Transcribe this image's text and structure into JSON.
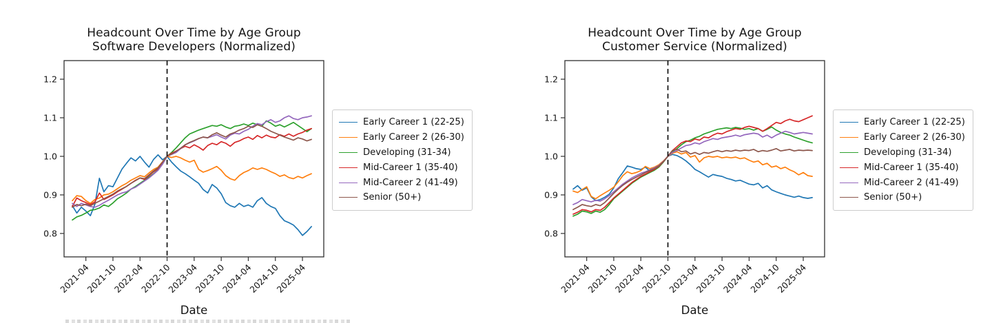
{
  "page": {
    "background": "#ffffff",
    "text_color": "#151515"
  },
  "chart_data": [
    {
      "type": "line",
      "title": "Headcount Over Time by Age Group",
      "subtitle": "Software Developers (Normalized)",
      "xlabel": "Date",
      "ylabel": "",
      "ylim": [
        0.74,
        1.25
      ],
      "yticks": [
        0.8,
        0.9,
        1.0,
        1.1,
        1.2
      ],
      "xticks": [
        "2021-04",
        "2021-10",
        "2022-04",
        "2022-10",
        "2023-04",
        "2023-10",
        "2024-04",
        "2024-10",
        "2025-04"
      ],
      "grid": false,
      "legend_position": "right",
      "vline": {
        "x": "2022-10",
        "style": "dashed",
        "color": "#000000"
      },
      "x": [
        "2021-01",
        "2021-02",
        "2021-03",
        "2021-04",
        "2021-05",
        "2021-06",
        "2021-07",
        "2021-08",
        "2021-09",
        "2021-10",
        "2021-11",
        "2021-12",
        "2022-01",
        "2022-02",
        "2022-03",
        "2022-04",
        "2022-05",
        "2022-06",
        "2022-07",
        "2022-08",
        "2022-09",
        "2022-10",
        "2022-11",
        "2022-12",
        "2023-01",
        "2023-02",
        "2023-03",
        "2023-04",
        "2023-05",
        "2023-06",
        "2023-07",
        "2023-08",
        "2023-09",
        "2023-10",
        "2023-11",
        "2023-12",
        "2024-01",
        "2024-02",
        "2024-03",
        "2024-04",
        "2024-05",
        "2024-06",
        "2024-07",
        "2024-08",
        "2024-09",
        "2024-10",
        "2024-11",
        "2024-12",
        "2025-01",
        "2025-02",
        "2025-03",
        "2025-04",
        "2025-05",
        "2025-06"
      ],
      "series": [
        {
          "name": "Early Career 1 (22-25)",
          "color": "#1f77b4",
          "values": [
            0.872,
            0.853,
            0.868,
            0.858,
            0.846,
            0.876,
            0.943,
            0.908,
            0.924,
            0.921,
            0.944,
            0.967,
            0.982,
            0.996,
            0.988,
            1.0,
            0.985,
            0.972,
            0.992,
            1.004,
            0.991,
            1.0,
            0.985,
            0.973,
            0.962,
            0.955,
            0.947,
            0.938,
            0.93,
            0.914,
            0.905,
            0.927,
            0.918,
            0.903,
            0.88,
            0.872,
            0.868,
            0.878,
            0.87,
            0.874,
            0.868,
            0.885,
            0.893,
            0.878,
            0.87,
            0.865,
            0.846,
            0.833,
            0.828,
            0.822,
            0.81,
            0.795,
            0.805,
            0.818
          ]
        },
        {
          "name": "Early Career 2 (26-30)",
          "color": "#ff7f0e",
          "values": [
            0.885,
            0.898,
            0.896,
            0.885,
            0.878,
            0.888,
            0.892,
            0.9,
            0.902,
            0.908,
            0.916,
            0.924,
            0.93,
            0.938,
            0.944,
            0.95,
            0.947,
            0.957,
            0.966,
            0.972,
            0.986,
            1.0,
            0.997,
            1.0,
            0.996,
            0.99,
            0.985,
            0.99,
            0.966,
            0.959,
            0.963,
            0.968,
            0.974,
            0.964,
            0.95,
            0.942,
            0.938,
            0.95,
            0.958,
            0.963,
            0.97,
            0.966,
            0.97,
            0.966,
            0.96,
            0.955,
            0.948,
            0.952,
            0.945,
            0.942,
            0.948,
            0.944,
            0.95,
            0.955
          ]
        },
        {
          "name": "Developing (31-34)",
          "color": "#2ca02c",
          "values": [
            0.835,
            0.843,
            0.847,
            0.853,
            0.86,
            0.862,
            0.866,
            0.874,
            0.87,
            0.879,
            0.89,
            0.897,
            0.905,
            0.915,
            0.922,
            0.93,
            0.938,
            0.946,
            0.955,
            0.965,
            0.98,
            1.0,
            1.01,
            1.022,
            1.035,
            1.048,
            1.058,
            1.063,
            1.068,
            1.072,
            1.076,
            1.08,
            1.078,
            1.082,
            1.076,
            1.072,
            1.078,
            1.08,
            1.084,
            1.08,
            1.086,
            1.082,
            1.078,
            1.092,
            1.086,
            1.078,
            1.082,
            1.076,
            1.082,
            1.088,
            1.08,
            1.072,
            1.064,
            1.072
          ]
        },
        {
          "name": "Mid-Career 1 (35-40)",
          "color": "#d62728",
          "values": [
            0.87,
            0.892,
            0.885,
            0.88,
            0.875,
            0.882,
            0.905,
            0.888,
            0.894,
            0.9,
            0.908,
            0.915,
            0.922,
            0.93,
            0.938,
            0.944,
            0.94,
            0.95,
            0.96,
            0.968,
            0.984,
            1.0,
            1.008,
            1.014,
            1.02,
            1.026,
            1.022,
            1.03,
            1.024,
            1.016,
            1.028,
            1.034,
            1.03,
            1.038,
            1.034,
            1.026,
            1.036,
            1.04,
            1.046,
            1.05,
            1.044,
            1.054,
            1.048,
            1.055,
            1.05,
            1.048,
            1.056,
            1.052,
            1.058,
            1.052,
            1.058,
            1.062,
            1.068,
            1.072
          ]
        },
        {
          "name": "Mid-Career 2 (41-49)",
          "color": "#9467bd",
          "values": [
            0.878,
            0.87,
            0.878,
            0.874,
            0.87,
            0.868,
            0.873,
            0.88,
            0.886,
            0.893,
            0.9,
            0.905,
            0.908,
            0.915,
            0.92,
            0.928,
            0.936,
            0.944,
            0.954,
            0.964,
            0.98,
            1.0,
            1.005,
            1.01,
            1.02,
            1.03,
            1.035,
            1.04,
            1.046,
            1.05,
            1.048,
            1.052,
            1.056,
            1.05,
            1.045,
            1.055,
            1.06,
            1.058,
            1.065,
            1.07,
            1.078,
            1.085,
            1.082,
            1.09,
            1.095,
            1.088,
            1.092,
            1.1,
            1.105,
            1.098,
            1.095,
            1.1,
            1.102,
            1.105
          ]
        },
        {
          "name": "Senior (50+)",
          "color": "#8c564b",
          "values": [
            0.868,
            0.875,
            0.872,
            0.876,
            0.872,
            0.878,
            0.884,
            0.89,
            0.896,
            0.902,
            0.91,
            0.916,
            0.922,
            0.93,
            0.937,
            0.944,
            0.942,
            0.952,
            0.962,
            0.97,
            0.985,
            1.0,
            1.006,
            1.013,
            1.021,
            1.03,
            1.036,
            1.041,
            1.046,
            1.05,
            1.048,
            1.056,
            1.061,
            1.055,
            1.05,
            1.058,
            1.062,
            1.068,
            1.072,
            1.078,
            1.075,
            1.082,
            1.078,
            1.072,
            1.065,
            1.06,
            1.055,
            1.05,
            1.046,
            1.042,
            1.048,
            1.045,
            1.04,
            1.044
          ]
        }
      ]
    },
    {
      "type": "line",
      "title": "Headcount Over Time by Age Group",
      "subtitle": "Customer Service (Normalized)",
      "xlabel": "Date",
      "ylabel": "",
      "ylim": [
        0.74,
        1.25
      ],
      "yticks": [
        0.8,
        0.9,
        1.0,
        1.1,
        1.2
      ],
      "xticks": [
        "2021-04",
        "2021-10",
        "2022-04",
        "2022-10",
        "2023-04",
        "2023-10",
        "2024-04",
        "2024-10",
        "2025-04"
      ],
      "grid": false,
      "legend_position": "right",
      "vline": {
        "x": "2022-10",
        "style": "dashed",
        "color": "#000000"
      },
      "x": [
        "2021-01",
        "2021-02",
        "2021-03",
        "2021-04",
        "2021-05",
        "2021-06",
        "2021-07",
        "2021-08",
        "2021-09",
        "2021-10",
        "2021-11",
        "2021-12",
        "2022-01",
        "2022-02",
        "2022-03",
        "2022-04",
        "2022-05",
        "2022-06",
        "2022-07",
        "2022-08",
        "2022-09",
        "2022-10",
        "2022-11",
        "2022-12",
        "2023-01",
        "2023-02",
        "2023-03",
        "2023-04",
        "2023-05",
        "2023-06",
        "2023-07",
        "2023-08",
        "2023-09",
        "2023-10",
        "2023-11",
        "2023-12",
        "2024-01",
        "2024-02",
        "2024-03",
        "2024-04",
        "2024-05",
        "2024-06",
        "2024-07",
        "2024-08",
        "2024-09",
        "2024-10",
        "2024-11",
        "2024-12",
        "2025-01",
        "2025-02",
        "2025-03",
        "2025-04",
        "2025-05",
        "2025-06"
      ],
      "series": [
        {
          "name": "Early Career 1 (22-25)",
          "color": "#1f77b4",
          "values": [
            0.915,
            0.924,
            0.912,
            0.918,
            0.895,
            0.885,
            0.888,
            0.894,
            0.902,
            0.918,
            0.942,
            0.958,
            0.975,
            0.972,
            0.968,
            0.966,
            0.972,
            0.962,
            0.968,
            0.975,
            0.986,
            1.0,
            1.005,
            1.002,
            0.996,
            0.988,
            0.978,
            0.966,
            0.96,
            0.953,
            0.946,
            0.953,
            0.95,
            0.948,
            0.943,
            0.94,
            0.936,
            0.938,
            0.933,
            0.928,
            0.926,
            0.93,
            0.918,
            0.924,
            0.913,
            0.908,
            0.904,
            0.9,
            0.897,
            0.894,
            0.897,
            0.893,
            0.891,
            0.893
          ]
        },
        {
          "name": "Early Career 2 (26-30)",
          "color": "#ff7f0e",
          "values": [
            0.91,
            0.906,
            0.914,
            0.921,
            0.896,
            0.89,
            0.898,
            0.905,
            0.912,
            0.92,
            0.934,
            0.95,
            0.96,
            0.955,
            0.958,
            0.963,
            0.974,
            0.968,
            0.972,
            0.978,
            0.988,
            1.0,
            1.008,
            1.012,
            1.006,
            1.01,
            0.998,
            1.002,
            0.985,
            0.996,
            1.0,
            0.998,
            1.0,
            0.996,
            0.998,
            0.996,
            0.998,
            0.994,
            0.996,
            0.99,
            0.985,
            0.988,
            0.978,
            0.982,
            0.972,
            0.975,
            0.968,
            0.972,
            0.965,
            0.96,
            0.952,
            0.958,
            0.95,
            0.948
          ]
        },
        {
          "name": "Developing (31-34)",
          "color": "#2ca02c",
          "values": [
            0.845,
            0.85,
            0.858,
            0.856,
            0.852,
            0.858,
            0.855,
            0.862,
            0.875,
            0.89,
            0.9,
            0.91,
            0.92,
            0.93,
            0.938,
            0.946,
            0.952,
            0.958,
            0.964,
            0.972,
            0.985,
            1.0,
            1.012,
            1.02,
            1.03,
            1.038,
            1.042,
            1.048,
            1.052,
            1.058,
            1.062,
            1.066,
            1.07,
            1.072,
            1.074,
            1.072,
            1.075,
            1.073,
            1.07,
            1.072,
            1.068,
            1.072,
            1.065,
            1.07,
            1.076,
            1.068,
            1.062,
            1.058,
            1.055,
            1.05,
            1.046,
            1.042,
            1.038,
            1.035
          ]
        },
        {
          "name": "Mid-Career 1 (35-40)",
          "color": "#d62728",
          "values": [
            0.85,
            0.855,
            0.862,
            0.86,
            0.856,
            0.862,
            0.86,
            0.868,
            0.88,
            0.892,
            0.902,
            0.912,
            0.922,
            0.932,
            0.94,
            0.948,
            0.954,
            0.96,
            0.966,
            0.974,
            0.986,
            1.0,
            1.015,
            1.025,
            1.035,
            1.04,
            1.038,
            1.045,
            1.042,
            1.05,
            1.048,
            1.055,
            1.06,
            1.058,
            1.064,
            1.068,
            1.072,
            1.07,
            1.075,
            1.078,
            1.075,
            1.072,
            1.065,
            1.072,
            1.08,
            1.088,
            1.085,
            1.092,
            1.096,
            1.092,
            1.09,
            1.095,
            1.1,
            1.105
          ]
        },
        {
          "name": "Mid-Career 2 (41-49)",
          "color": "#9467bd",
          "values": [
            0.875,
            0.88,
            0.888,
            0.885,
            0.882,
            0.886,
            0.884,
            0.89,
            0.898,
            0.908,
            0.918,
            0.928,
            0.936,
            0.944,
            0.95,
            0.956,
            0.96,
            0.965,
            0.97,
            0.976,
            0.987,
            1.0,
            1.01,
            1.015,
            1.022,
            1.028,
            1.03,
            1.035,
            1.032,
            1.038,
            1.042,
            1.046,
            1.044,
            1.048,
            1.05,
            1.052,
            1.055,
            1.052,
            1.056,
            1.058,
            1.06,
            1.058,
            1.05,
            1.055,
            1.048,
            1.055,
            1.06,
            1.065,
            1.062,
            1.058,
            1.06,
            1.062,
            1.06,
            1.058
          ]
        },
        {
          "name": "Senior (50+)",
          "color": "#8c564b",
          "values": [
            0.862,
            0.868,
            0.875,
            0.872,
            0.87,
            0.875,
            0.872,
            0.88,
            0.892,
            0.904,
            0.915,
            0.925,
            0.933,
            0.94,
            0.946,
            0.952,
            0.958,
            0.963,
            0.968,
            0.975,
            0.986,
            1.0,
            1.015,
            1.018,
            1.012,
            1.014,
            1.006,
            1.01,
            1.005,
            1.01,
            1.008,
            1.012,
            1.015,
            1.012,
            1.015,
            1.013,
            1.016,
            1.014,
            1.016,
            1.015,
            1.018,
            1.012,
            1.015,
            1.013,
            1.016,
            1.02,
            1.014,
            1.016,
            1.018,
            1.014,
            1.016,
            1.015,
            1.016,
            1.015
          ]
        }
      ]
    }
  ]
}
